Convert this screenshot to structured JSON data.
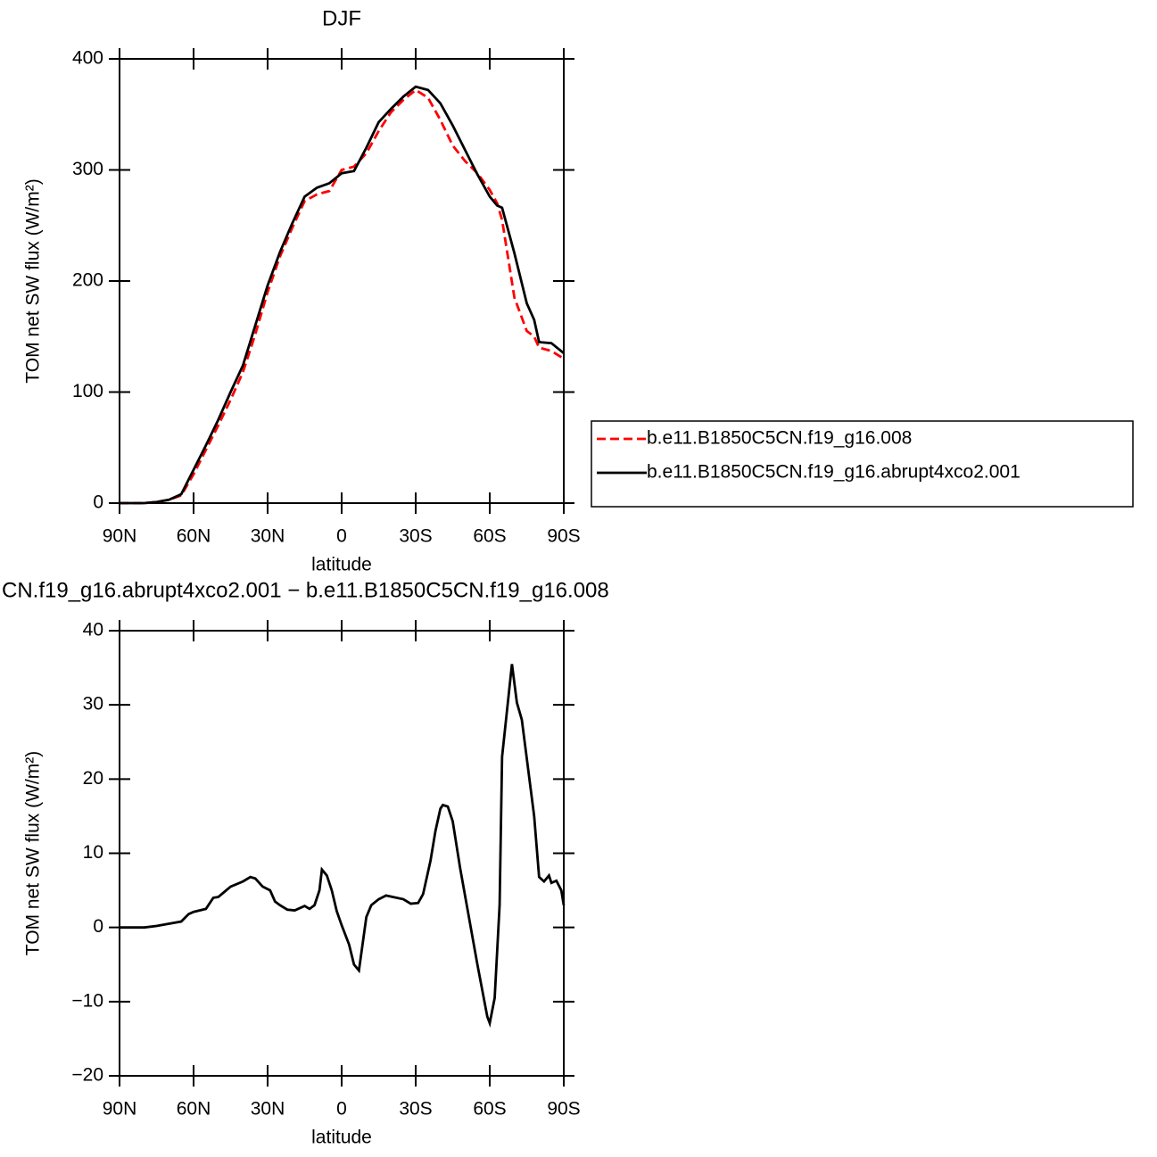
{
  "chart_data": [
    {
      "type": "line",
      "title": "DJF",
      "xlabel": "latitude",
      "ylabel": "TOM net SW flux (W/m²)",
      "x": [
        90,
        80,
        75,
        70,
        65,
        60,
        55,
        50,
        45,
        40,
        35,
        30,
        25,
        20,
        15,
        10,
        5,
        0,
        -5,
        -10,
        -15,
        -20,
        -25,
        -30,
        -35,
        -40,
        -45,
        -50,
        -55,
        -60,
        -63,
        -65,
        -70,
        -75,
        -78,
        -80,
        -85,
        -90
      ],
      "series": [
        {
          "name": "b.e11.B1850C5CN.f19_g16.008",
          "color": "#ff0000",
          "line_style": "dashed",
          "values": [
            0,
            0,
            1,
            3,
            7,
            26,
            48,
            70,
            93,
            118,
            152,
            190,
            222,
            248,
            272,
            278,
            281,
            300,
            303,
            315,
            335,
            352,
            363,
            372,
            365,
            345,
            322,
            308,
            297,
            282,
            270,
            255,
            185,
            155,
            150,
            140,
            137,
            130
          ]
        },
        {
          "name": "b.e11.B1850C5CN.f19_g16.abrupt4xco2.001",
          "color": "#000000",
          "line_style": "solid",
          "values": [
            0,
            0,
            1,
            3,
            8,
            30,
            52,
            75,
            100,
            124,
            160,
            196,
            226,
            252,
            276,
            284,
            288,
            297,
            299,
            320,
            343,
            355,
            366,
            375,
            372,
            360,
            340,
            318,
            296,
            276,
            268,
            266,
            225,
            180,
            165,
            145,
            144,
            135
          ]
        }
      ],
      "xlim": [
        90,
        -90
      ],
      "xticks": [
        {
          "value": 90,
          "label": "90N"
        },
        {
          "value": 60,
          "label": "60N"
        },
        {
          "value": 30,
          "label": "30N"
        },
        0,
        {
          "value": -30,
          "label": "30S"
        },
        {
          "value": -60,
          "label": "60S"
        },
        {
          "value": -90,
          "label": "90S"
        }
      ],
      "ylim": [
        0,
        400
      ],
      "yticks": [
        0,
        100,
        200,
        300,
        400
      ],
      "legend": "right"
    },
    {
      "type": "line",
      "title": "CN.f19_g16.abrupt4xco2.001 − b.e11.B1850C5CN.f19_g16.008",
      "xlabel": "latitude",
      "ylabel": "TOM net SW flux (W/m²)",
      "x": [
        90,
        80,
        75,
        70,
        65,
        62,
        60,
        55,
        52,
        50,
        45,
        40,
        37,
        35,
        32,
        29,
        27,
        25,
        22,
        19,
        15,
        13,
        11,
        9,
        8,
        6,
        4,
        2,
        0,
        -3,
        -5,
        -7,
        -10,
        -12,
        -15,
        -18,
        -25,
        -28,
        -31,
        -33,
        -36,
        -38,
        -40,
        -41,
        -43,
        -45,
        -48,
        -55,
        -59,
        -60,
        -62,
        -64,
        -65,
        -69,
        -71,
        -73,
        -78,
        -80,
        -82,
        -84,
        -85,
        -87,
        -89,
        -90
      ],
      "series": [
        {
          "color": "#000000",
          "line_style": "solid",
          "values": [
            0,
            0,
            0.2,
            0.5,
            0.8,
            1.8,
            2.1,
            2.5,
            4,
            4.1,
            5.5,
            6.2,
            6.8,
            6.6,
            5.5,
            5,
            3.5,
            3,
            2.4,
            2.3,
            2.9,
            2.5,
            3,
            5,
            7.8,
            7,
            5,
            2.2,
            0.3,
            -2.3,
            -5,
            -5.8,
            1.4,
            3,
            3.8,
            4.3,
            3.8,
            3.2,
            3.3,
            4.5,
            9,
            13,
            16,
            16.5,
            16.3,
            14.3,
            8,
            -5,
            -12,
            -12.9,
            -9.5,
            3,
            23,
            35.5,
            30.3,
            28,
            15,
            6.8,
            6.2,
            7,
            6,
            6.3,
            5,
            3
          ]
        }
      ],
      "xlim": [
        90,
        -90
      ],
      "xticks": [
        {
          "value": 90,
          "label": "90N"
        },
        {
          "value": 60,
          "label": "60N"
        },
        {
          "value": 30,
          "label": "30N"
        },
        0,
        {
          "value": -30,
          "label": "30S"
        },
        {
          "value": -60,
          "label": "60S"
        },
        {
          "value": -90,
          "label": "90S"
        }
      ],
      "ylim": [
        -20,
        40
      ],
      "yticks": [
        {
          "value": -20,
          "label": "−20"
        },
        {
          "value": -10,
          "label": "−10"
        },
        0,
        10,
        20,
        30,
        40
      ]
    }
  ]
}
